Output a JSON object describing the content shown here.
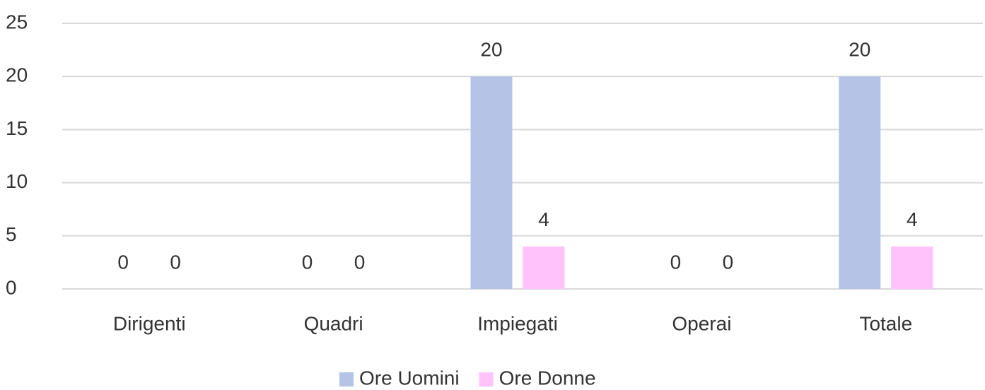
{
  "chart_data": {
    "type": "bar",
    "categories": [
      "Dirigenti",
      "Quadri",
      "Impiegati",
      "Operai",
      "Totale"
    ],
    "series": [
      {
        "name": "Ore Uomini",
        "color": "#b4c3e6",
        "values": [
          0,
          0,
          20,
          0,
          20
        ]
      },
      {
        "name": "Ore Donne",
        "color": "#ffc2fa",
        "values": [
          0,
          0,
          4,
          0,
          4
        ]
      }
    ],
    "ylim": [
      0,
      25
    ],
    "yticks": [
      0,
      5,
      10,
      15,
      20,
      25
    ],
    "grid": true,
    "legend": "bottom"
  }
}
